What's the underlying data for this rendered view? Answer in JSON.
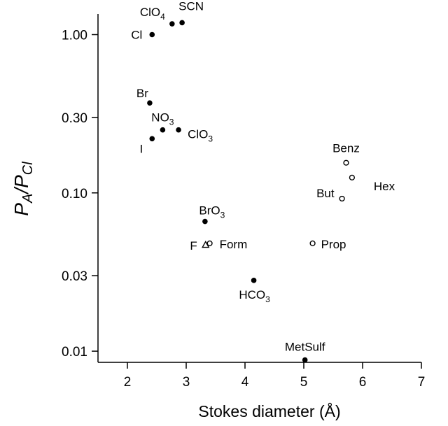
{
  "chart_data": {
    "type": "scatter",
    "title": "",
    "xlabel": "Stokes diameter (Å)",
    "ylabel": {
      "base": "P",
      "sub_a": "A",
      "slash": "/",
      "base2": "P",
      "sub_b": "Cl"
    },
    "xlim": [
      1.5,
      7
    ],
    "ylim": [
      0.0085,
      1.35
    ],
    "yscale": "log",
    "grid": false,
    "x_ticks": [
      2,
      3,
      4,
      5,
      6,
      7
    ],
    "x_tick_labels": [
      "2",
      "3",
      "4",
      "5",
      "6",
      "7"
    ],
    "y_ticks": [
      0.01,
      0.03,
      0.1,
      0.3,
      1.0
    ],
    "y_tick_labels": [
      "0.01",
      "0.03",
      "0.10",
      "0.30",
      "1.00"
    ],
    "points": [
      {
        "label": "ClO",
        "sub": "4",
        "x": 2.76,
        "y": 1.17,
        "marker": "filled"
      },
      {
        "label": "SCN",
        "sub": "",
        "x": 2.93,
        "y": 1.19,
        "marker": "filled"
      },
      {
        "label": "Cl",
        "sub": "",
        "x": 2.42,
        "y": 1.0,
        "marker": "filled"
      },
      {
        "label": "Br",
        "sub": "",
        "x": 2.38,
        "y": 0.37,
        "marker": "filled"
      },
      {
        "label": "NO",
        "sub": "3",
        "x": 2.6,
        "y": 0.25,
        "marker": "filled"
      },
      {
        "label": "ClO",
        "sub": "3",
        "x": 2.87,
        "y": 0.25,
        "marker": "filled"
      },
      {
        "label": "I",
        "sub": "",
        "x": 2.42,
        "y": 0.22,
        "marker": "filled"
      },
      {
        "label": "BrO",
        "sub": "3",
        "x": 3.32,
        "y": 0.066,
        "marker": "filled"
      },
      {
        "label": "F",
        "sub": "",
        "x": 3.33,
        "y": 0.047,
        "marker": "triangle"
      },
      {
        "label": "Form",
        "sub": "",
        "x": 3.4,
        "y": 0.048,
        "marker": "open"
      },
      {
        "label": "HCO",
        "sub": "3",
        "x": 4.15,
        "y": 0.028,
        "marker": "filled"
      },
      {
        "label": "MetSulf",
        "sub": "",
        "x": 5.02,
        "y": 0.0088,
        "marker": "filled"
      },
      {
        "label": "Benz",
        "sub": "",
        "x": 5.72,
        "y": 0.155,
        "marker": "open"
      },
      {
        "label": "Hex",
        "sub": "",
        "x": 5.82,
        "y": 0.125,
        "marker": "open"
      },
      {
        "label": "But",
        "sub": "",
        "x": 5.65,
        "y": 0.092,
        "marker": "open"
      },
      {
        "label": "Prop",
        "sub": "",
        "x": 5.15,
        "y": 0.048,
        "marker": "open"
      }
    ]
  }
}
